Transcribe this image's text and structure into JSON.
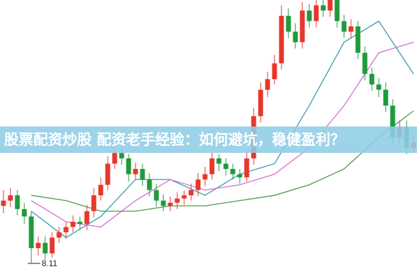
{
  "chart_data": {
    "type": "candlestick",
    "title": "股票配资炒股 配资老手经验：如何避坑，稳健盈利？",
    "ylim": [
      8.0,
      10.6
    ],
    "up_color": "#e8362d",
    "down_color": "#1f9a3c",
    "open": [
      8.65,
      8.7,
      8.75,
      8.62,
      8.55,
      8.25,
      8.3,
      8.2,
      8.35,
      8.4,
      8.45,
      8.5,
      8.48,
      8.6,
      8.75,
      8.85,
      9.05,
      9.15,
      9.1,
      8.95,
      9.0,
      8.9,
      8.8,
      8.7,
      8.65,
      8.68,
      8.72,
      8.75,
      8.8,
      8.9,
      8.95,
      9.1,
      9.05,
      9.0,
      8.95,
      8.92,
      9.1,
      9.5,
      9.75,
      9.85,
      10.0,
      10.45,
      10.3,
      10.2,
      10.5,
      10.4,
      10.55,
      10.5,
      10.6,
      10.4,
      10.3,
      10.35,
      10.1,
      9.9,
      9.8,
      9.75,
      9.6,
      9.3,
      9.4,
      9.2
    ],
    "close": [
      8.7,
      8.75,
      8.62,
      8.55,
      8.25,
      8.3,
      8.2,
      8.35,
      8.4,
      8.45,
      8.5,
      8.48,
      8.6,
      8.75,
      8.85,
      9.05,
      9.15,
      9.1,
      8.95,
      9.0,
      8.9,
      8.8,
      8.7,
      8.65,
      8.68,
      8.72,
      8.75,
      8.8,
      8.9,
      8.95,
      9.1,
      9.05,
      9.0,
      8.95,
      8.92,
      9.1,
      9.5,
      9.75,
      9.85,
      10.0,
      10.45,
      10.3,
      10.2,
      10.5,
      10.4,
      10.55,
      10.5,
      10.6,
      10.4,
      10.3,
      10.35,
      10.1,
      9.9,
      9.8,
      9.75,
      9.6,
      9.3,
      9.4,
      9.2,
      9.25
    ],
    "high": [
      8.8,
      8.82,
      8.8,
      8.68,
      8.6,
      8.36,
      8.36,
      8.4,
      8.45,
      8.5,
      8.56,
      8.55,
      8.66,
      8.82,
      8.92,
      9.12,
      9.22,
      9.2,
      9.14,
      9.06,
      9.05,
      8.96,
      8.86,
      8.76,
      8.74,
      8.78,
      8.8,
      8.86,
      8.96,
      9.02,
      9.16,
      9.14,
      9.1,
      9.05,
      9.0,
      9.16,
      9.58,
      9.82,
      9.92,
      10.08,
      10.55,
      10.52,
      10.38,
      10.58,
      10.56,
      10.62,
      10.6,
      10.66,
      10.64,
      10.46,
      10.42,
      10.4,
      10.16,
      9.96,
      9.86,
      9.82,
      9.66,
      9.46,
      9.46,
      9.32
    ],
    "low": [
      8.58,
      8.64,
      8.56,
      8.48,
      8.11,
      8.18,
      8.14,
      8.16,
      8.3,
      8.34,
      8.4,
      8.42,
      8.42,
      8.54,
      8.7,
      8.8,
      9.0,
      9.04,
      8.88,
      8.9,
      8.84,
      8.74,
      8.64,
      8.6,
      8.6,
      8.62,
      8.66,
      8.7,
      8.74,
      8.84,
      8.9,
      8.98,
      8.94,
      8.9,
      8.86,
      8.88,
      9.04,
      9.44,
      9.68,
      9.8,
      9.94,
      10.24,
      10.14,
      10.14,
      10.34,
      10.34,
      10.44,
      10.44,
      10.34,
      10.24,
      10.24,
      10.04,
      9.84,
      9.74,
      9.68,
      9.54,
      9.24,
      9.24,
      9.14,
      9.16
    ],
    "ma_index": [
      4,
      9,
      14,
      19,
      24,
      29,
      34,
      39,
      44,
      49,
      54,
      59
    ],
    "series": [
      {
        "color": "#3a9ab0",
        "values": [
          8.6,
          8.35,
          8.55,
          8.9,
          8.9,
          8.75,
          8.95,
          9.05,
          9.6,
          10.2,
          10.4,
          9.9
        ]
      },
      {
        "color": "#d070d0",
        "values": [
          8.7,
          8.5,
          8.45,
          8.7,
          8.9,
          8.8,
          8.85,
          8.95,
          9.2,
          9.6,
          10.1,
          10.2
        ]
      },
      {
        "color": "#4a9a4a",
        "values": [
          8.75,
          8.7,
          8.6,
          8.6,
          8.65,
          8.65,
          8.7,
          8.75,
          8.85,
          9.0,
          9.3,
          9.55
        ]
      }
    ],
    "annotation": "8.11"
  }
}
